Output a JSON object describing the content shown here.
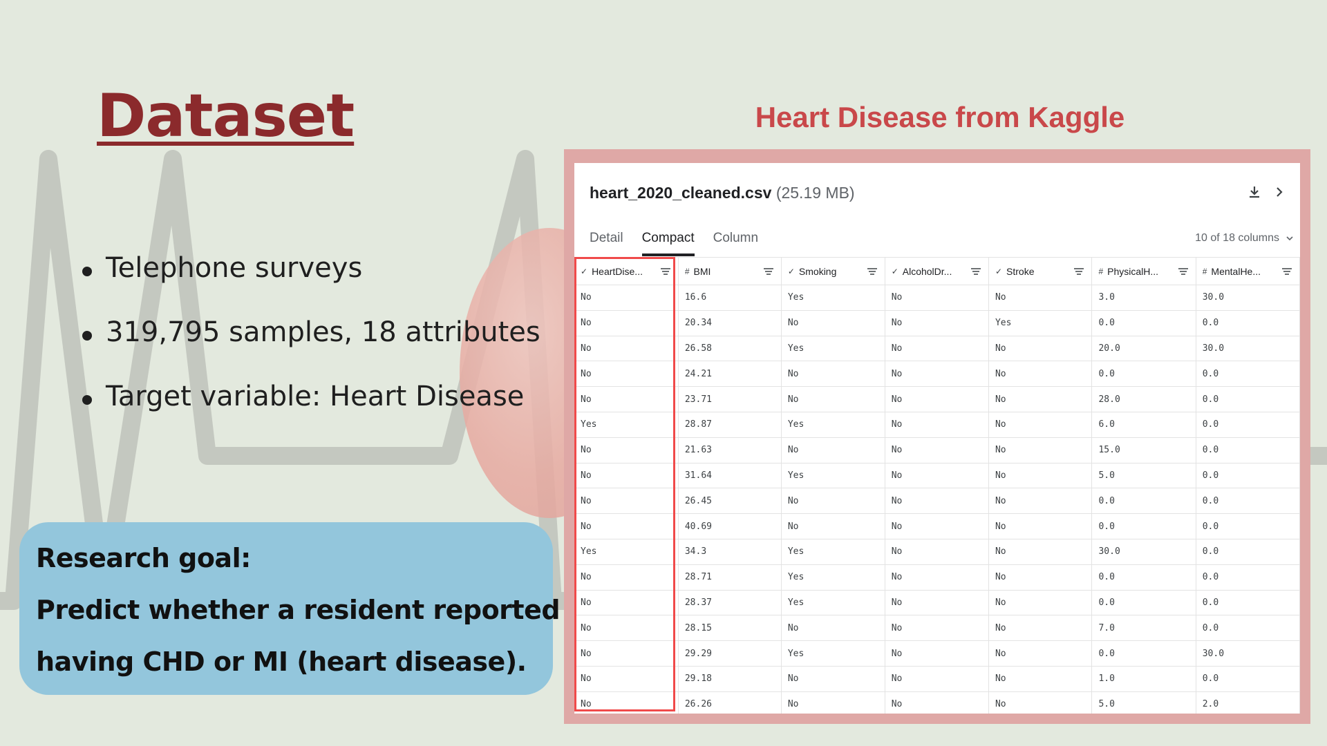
{
  "slide": {
    "title": "Dataset",
    "bullets": [
      "Telephone surveys",
      "319,795 samples, 18 attributes",
      "Target variable: Heart Disease"
    ],
    "goal": {
      "heading": "Research goal:",
      "line1": "Predict whether a resident reported",
      "line2": "having CHD or MI (heart disease)."
    }
  },
  "source_title": "Heart Disease from Kaggle",
  "dataset_panel": {
    "file_name": "heart_2020_cleaned.csv",
    "file_size": "(25.19 MB)",
    "icons": [
      "download-icon",
      "chevron-right-icon"
    ],
    "tabs": [
      {
        "label": "Detail",
        "active": false
      },
      {
        "label": "Compact",
        "active": true
      },
      {
        "label": "Column",
        "active": false
      }
    ],
    "column_count": "10 of 18 columns",
    "columns": [
      {
        "label": "HeartDise...",
        "type_icon": "✓"
      },
      {
        "label": "BMI",
        "type_icon": "#"
      },
      {
        "label": "Smoking",
        "type_icon": "✓"
      },
      {
        "label": "AlcoholDr...",
        "type_icon": "✓"
      },
      {
        "label": "Stroke",
        "type_icon": "✓"
      },
      {
        "label": "PhysicalH...",
        "type_icon": "#"
      },
      {
        "label": "MentalHe...",
        "type_icon": "#"
      }
    ],
    "rows": [
      [
        "No",
        "16.6",
        "Yes",
        "No",
        "No",
        "3.0",
        "30.0"
      ],
      [
        "No",
        "20.34",
        "No",
        "No",
        "Yes",
        "0.0",
        "0.0"
      ],
      [
        "No",
        "26.58",
        "Yes",
        "No",
        "No",
        "20.0",
        "30.0"
      ],
      [
        "No",
        "24.21",
        "No",
        "No",
        "No",
        "0.0",
        "0.0"
      ],
      [
        "No",
        "23.71",
        "No",
        "No",
        "No",
        "28.0",
        "0.0"
      ],
      [
        "Yes",
        "28.87",
        "Yes",
        "No",
        "No",
        "6.0",
        "0.0"
      ],
      [
        "No",
        "21.63",
        "No",
        "No",
        "No",
        "15.0",
        "0.0"
      ],
      [
        "No",
        "31.64",
        "Yes",
        "No",
        "No",
        "5.0",
        "0.0"
      ],
      [
        "No",
        "26.45",
        "No",
        "No",
        "No",
        "0.0",
        "0.0"
      ],
      [
        "No",
        "40.69",
        "No",
        "No",
        "No",
        "0.0",
        "0.0"
      ],
      [
        "Yes",
        "34.3",
        "Yes",
        "No",
        "No",
        "30.0",
        "0.0"
      ],
      [
        "No",
        "28.71",
        "Yes",
        "No",
        "No",
        "0.0",
        "0.0"
      ],
      [
        "No",
        "28.37",
        "Yes",
        "No",
        "No",
        "0.0",
        "0.0"
      ],
      [
        "No",
        "28.15",
        "No",
        "No",
        "No",
        "7.0",
        "0.0"
      ],
      [
        "No",
        "29.29",
        "Yes",
        "No",
        "No",
        "0.0",
        "30.0"
      ],
      [
        "No",
        "29.18",
        "No",
        "No",
        "No",
        "1.0",
        "0.0"
      ],
      [
        "No",
        "26.26",
        "No",
        "No",
        "No",
        "5.0",
        "2.0"
      ]
    ]
  },
  "colors": {
    "title": "#8b2a2c",
    "source_title": "#c9484a",
    "goal_box": "#93c6dc",
    "frame": "#dfa8a6",
    "highlight": "#f04a4a",
    "background": "#e3e9de"
  }
}
